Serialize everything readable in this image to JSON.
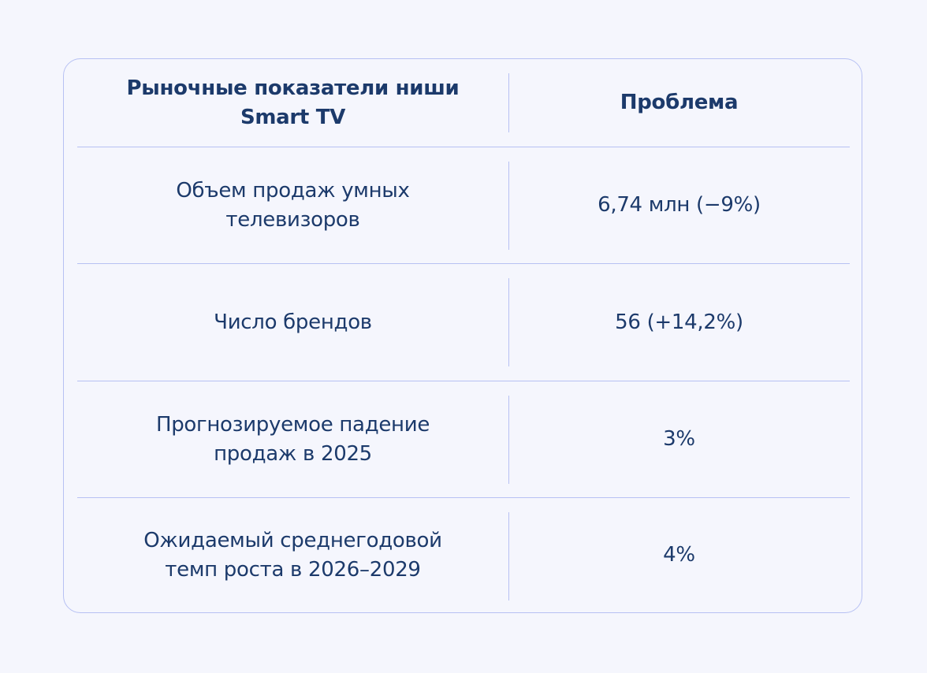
{
  "table": {
    "header": {
      "col1": "Рыночные показатели ниши\nSmart TV",
      "col2": "Проблема"
    },
    "rows": [
      {
        "metric": "Объем продаж умных\nтелевизоров",
        "value": "6,74 млн (−9%)"
      },
      {
        "metric": "Число брендов",
        "value": "56 (+14,2%)"
      },
      {
        "metric": "Прогнозируемое падение\nпродаж в 2025",
        "value": "3%"
      },
      {
        "metric": "Ожидаемый среднегодовой\nтемп роста в 2026–2029",
        "value": "4%"
      }
    ]
  },
  "colors": {
    "background": "#f5f6fd",
    "text": "#1c3a6b",
    "border": "#b7c1f3"
  }
}
